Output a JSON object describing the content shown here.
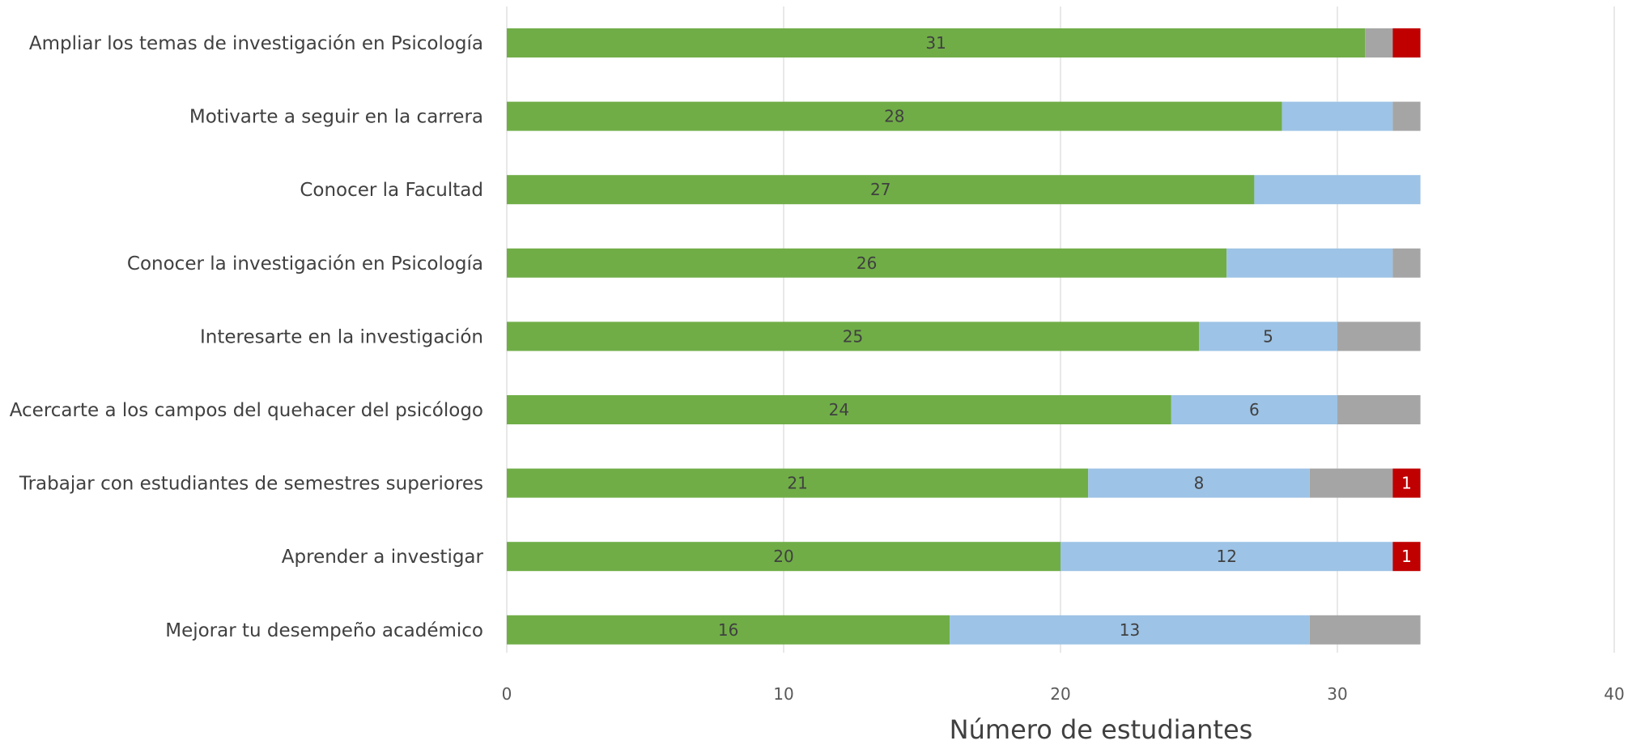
{
  "chart_data": {
    "type": "bar",
    "orientation": "horizontal",
    "stacked": true,
    "title": "",
    "xlabel": "Número de estudiantes",
    "ylabel": "",
    "xlim": [
      0,
      40
    ],
    "xticks": [
      0,
      10,
      20,
      30,
      40
    ],
    "grid": true,
    "legend": "none",
    "categories": [
      "Ampliar los temas de investigación en Psicología",
      "Motivarte a seguir en la carrera",
      "Conocer la Facultad",
      "Conocer  la investigación en Psicología",
      "Interesarte en la investigación",
      "Acercarte a los campos del quehacer del psicólogo",
      "Trabajar con estudiantes de semestres superiores",
      "Aprender a investigar",
      "Mejorar tu desempeño académico"
    ],
    "series": [
      {
        "color": "#70AD47",
        "label_color": "#404040",
        "values": [
          31,
          28,
          27,
          26,
          25,
          24,
          21,
          20,
          16
        ],
        "labels": [
          "31",
          "28",
          "27",
          "26",
          "25",
          "24",
          "21",
          "20",
          "16"
        ]
      },
      {
        "color": "#9DC3E6",
        "label_color": "#404040",
        "values": [
          0,
          4,
          6,
          6,
          5,
          6,
          8,
          12,
          13
        ],
        "labels": [
          "",
          "",
          "",
          "",
          "5",
          "6",
          "8",
          "12",
          "13"
        ]
      },
      {
        "color": "#A5A5A5",
        "label_color": "#404040",
        "values": [
          1,
          1,
          0,
          1,
          3,
          3,
          3,
          0,
          4
        ],
        "labels": [
          "",
          "",
          "",
          "",
          "",
          "",
          "",
          "",
          ""
        ]
      },
      {
        "color": "#C00000",
        "label_color": "#FFFFFF",
        "values": [
          1,
          0,
          0,
          0,
          0,
          0,
          1,
          1,
          0
        ],
        "labels": [
          "",
          "",
          "",
          "",
          "",
          "",
          "1",
          "1",
          ""
        ]
      }
    ]
  }
}
